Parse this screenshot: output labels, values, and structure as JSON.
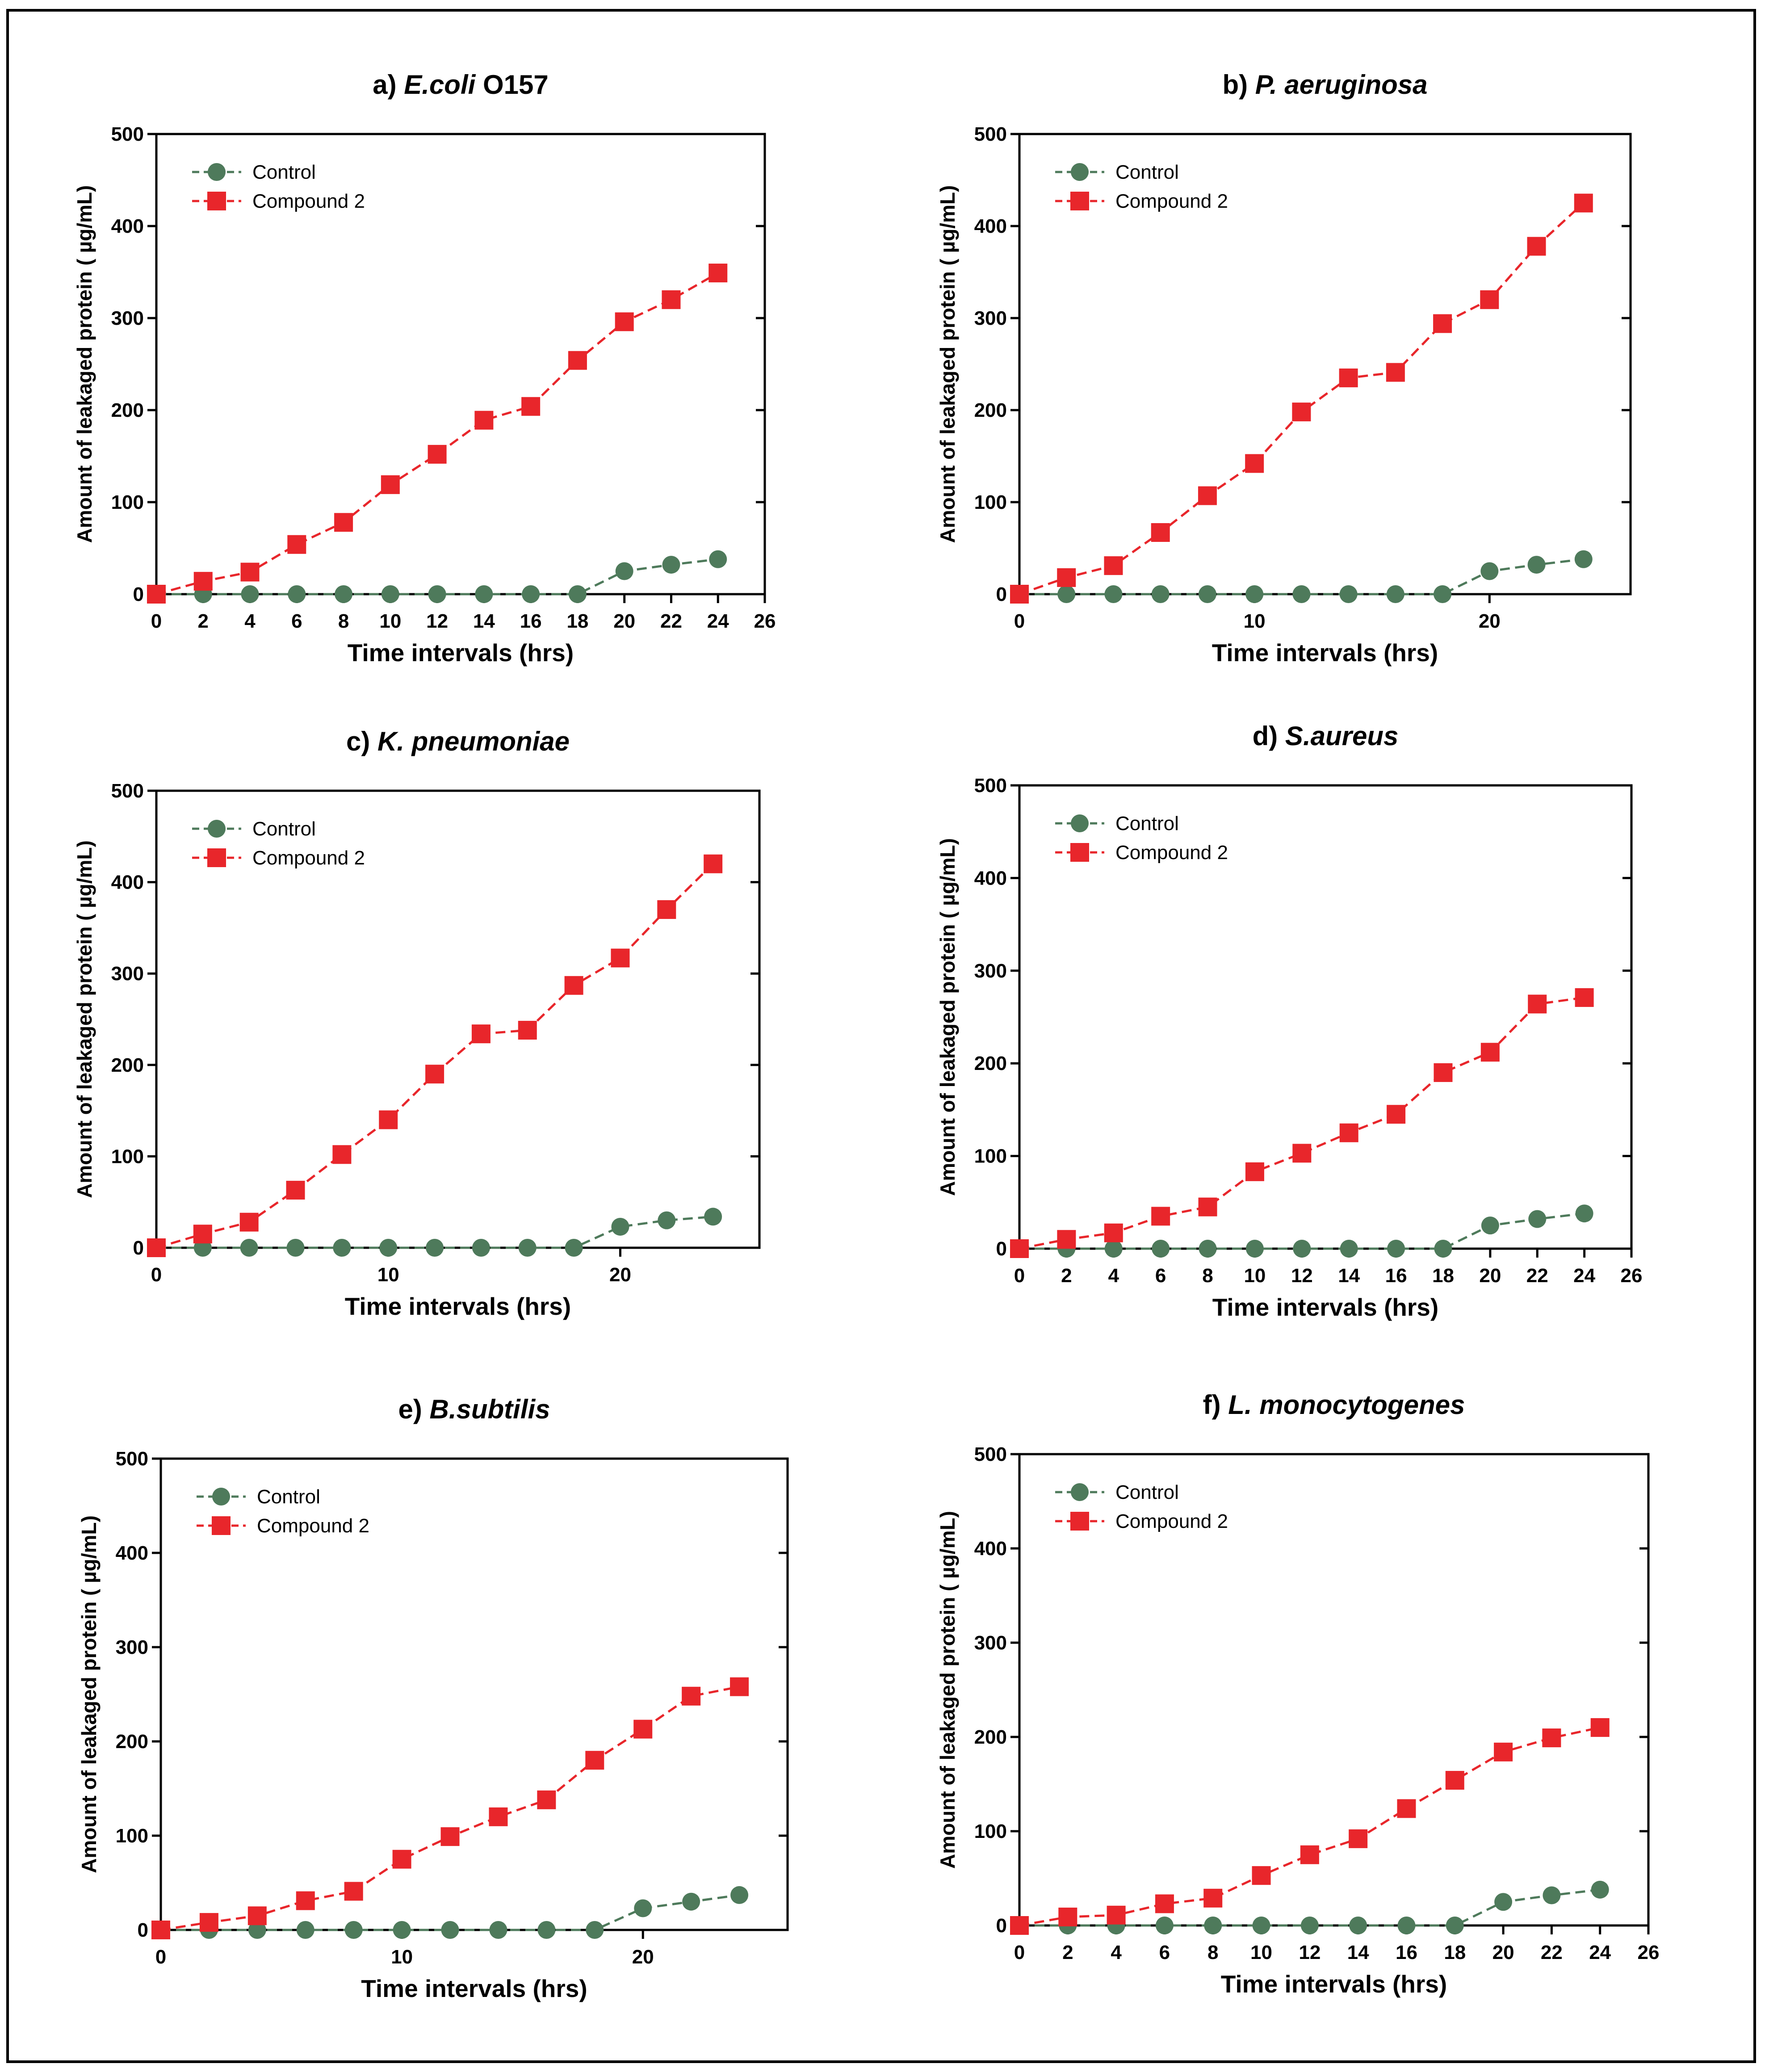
{
  "figure": {
    "colors": {
      "control": "#4e7a5b",
      "compound": "#e8262b",
      "axis": "#000000"
    }
  },
  "chart_data": [
    {
      "type": "line",
      "title_prefix": "a)",
      "title_name": "E.coli",
      "title_suffix": " O157",
      "xlabel": "Time intervals (hrs)",
      "ylabel": "Amount of leakaged protein (  µg/mL)",
      "xlim": [
        0,
        26
      ],
      "ylim": [
        0,
        500
      ],
      "xticks": [
        0,
        2,
        4,
        6,
        8,
        10,
        12,
        14,
        16,
        18,
        20,
        22,
        24,
        26
      ],
      "yticks": [
        0,
        100,
        200,
        300,
        400,
        500
      ],
      "legend_position": "top-left",
      "series": [
        {
          "name": "Control",
          "marker": "circle",
          "x": [
            0,
            2,
            4,
            6,
            8,
            10,
            12,
            14,
            16,
            18,
            20,
            22,
            24
          ],
          "y": [
            0,
            0,
            0,
            0,
            0,
            0,
            0,
            0,
            0,
            0,
            25,
            32,
            38
          ]
        },
        {
          "name": "Compound 2",
          "marker": "square",
          "x": [
            0,
            2,
            4,
            6,
            8,
            10,
            12,
            14,
            16,
            18,
            20,
            22,
            24
          ],
          "y": [
            0,
            14,
            24,
            54,
            78,
            119,
            152,
            189,
            204,
            254,
            296,
            320,
            349
          ]
        }
      ]
    },
    {
      "type": "line",
      "title_prefix": "b)",
      "title_name": "P. aeruginosa",
      "title_suffix": "",
      "xlabel": "Time intervals (hrs)",
      "ylabel": "Amount of leakaged protein (  µg/mL)",
      "xlim": [
        0,
        26
      ],
      "ylim": [
        0,
        500
      ],
      "xticks": [
        0,
        10,
        20
      ],
      "yticks": [
        0,
        100,
        200,
        300,
        400,
        500
      ],
      "legend_position": "top-left",
      "series": [
        {
          "name": "Control",
          "marker": "circle",
          "x": [
            0,
            2,
            4,
            6,
            8,
            10,
            12,
            14,
            16,
            18,
            20,
            22,
            24
          ],
          "y": [
            0,
            0,
            0,
            0,
            0,
            0,
            0,
            0,
            0,
            0,
            25,
            32,
            38
          ]
        },
        {
          "name": "Compound 2",
          "marker": "square",
          "x": [
            0,
            2,
            4,
            6,
            8,
            10,
            12,
            14,
            16,
            18,
            20,
            22,
            24
          ],
          "y": [
            0,
            18,
            31,
            67,
            107,
            142,
            198,
            235,
            241,
            294,
            320,
            378,
            425
          ]
        }
      ]
    },
    {
      "type": "line",
      "title_prefix": "c)",
      "title_name": "K. pneumoniae",
      "title_suffix": "",
      "xlabel": "Time intervals (hrs)",
      "ylabel": "Amount of leakaged protein (  µg/mL)",
      "xlim": [
        0,
        26
      ],
      "ylim": [
        0,
        500
      ],
      "xticks": [
        0,
        10,
        20
      ],
      "yticks": [
        0,
        100,
        200,
        300,
        400,
        500
      ],
      "legend_position": "top-left",
      "series": [
        {
          "name": "Control",
          "marker": "circle",
          "x": [
            0,
            2,
            4,
            6,
            8,
            10,
            12,
            14,
            16,
            18,
            20,
            22,
            24
          ],
          "y": [
            0,
            0,
            0,
            0,
            0,
            0,
            0,
            0,
            0,
            0,
            23,
            30,
            34
          ]
        },
        {
          "name": "Compound 2",
          "marker": "square",
          "x": [
            0,
            2,
            4,
            6,
            8,
            10,
            12,
            14,
            16,
            18,
            20,
            22,
            24
          ],
          "y": [
            0,
            15,
            28,
            63,
            102,
            140,
            190,
            234,
            238,
            287,
            317,
            370,
            420
          ]
        }
      ]
    },
    {
      "type": "line",
      "title_prefix": "d)",
      "title_name": "S.aureus",
      "title_suffix": "",
      "xlabel": "Time intervals (hrs)",
      "ylabel": "Amount of leakaged protein (  µg/mL)",
      "xlim": [
        0,
        26
      ],
      "ylim": [
        0,
        500
      ],
      "xticks": [
        0,
        2,
        4,
        6,
        8,
        10,
        12,
        14,
        16,
        18,
        20,
        22,
        24,
        26
      ],
      "yticks": [
        0,
        100,
        200,
        300,
        400,
        500
      ],
      "legend_position": "top-left",
      "series": [
        {
          "name": "Control",
          "marker": "circle",
          "x": [
            0,
            2,
            4,
            6,
            8,
            10,
            12,
            14,
            16,
            18,
            20,
            22,
            24
          ],
          "y": [
            0,
            0,
            0,
            0,
            0,
            0,
            0,
            0,
            0,
            0,
            25,
            32,
            38
          ]
        },
        {
          "name": "Compound 2",
          "marker": "square",
          "x": [
            0,
            2,
            4,
            6,
            8,
            10,
            12,
            14,
            16,
            18,
            20,
            22,
            24
          ],
          "y": [
            0,
            10,
            17,
            35,
            45,
            83,
            103,
            125,
            145,
            190,
            212,
            264,
            271
          ]
        }
      ]
    },
    {
      "type": "line",
      "title_prefix": "e)",
      "title_name": "B.subtilis",
      "title_suffix": "",
      "xlabel": "Time intervals (hrs)",
      "ylabel": "Amount of leakaged protein (  µg/mL)",
      "xlim": [
        0,
        26
      ],
      "ylim": [
        0,
        500
      ],
      "xticks": [
        0,
        10,
        20
      ],
      "yticks": [
        0,
        100,
        200,
        300,
        400,
        500
      ],
      "legend_position": "top-left",
      "series": [
        {
          "name": "Control",
          "marker": "circle",
          "x": [
            0,
            2,
            4,
            6,
            8,
            10,
            12,
            14,
            16,
            18,
            20,
            22,
            24
          ],
          "y": [
            0,
            0,
            0,
            0,
            0,
            0,
            0,
            0,
            0,
            0,
            23,
            30,
            37
          ]
        },
        {
          "name": "Compound 2",
          "marker": "square",
          "x": [
            0,
            2,
            4,
            6,
            8,
            10,
            12,
            14,
            16,
            18,
            20,
            22,
            24
          ],
          "y": [
            0,
            8,
            15,
            31,
            41,
            75,
            99,
            120,
            138,
            180,
            213,
            248,
            258
          ]
        }
      ]
    },
    {
      "type": "line",
      "title_prefix": "f)",
      "title_name": "L. monocytogenes",
      "title_suffix": "",
      "xlabel": "Time intervals (hrs)",
      "ylabel": "Amount of leakaged protein (  µg/mL)",
      "xlim": [
        0,
        26
      ],
      "ylim": [
        0,
        500
      ],
      "xticks": [
        0,
        2,
        4,
        6,
        8,
        10,
        12,
        14,
        16,
        18,
        20,
        22,
        24,
        26
      ],
      "yticks": [
        0,
        100,
        200,
        300,
        400,
        500
      ],
      "legend_position": "top-left",
      "series": [
        {
          "name": "Control",
          "marker": "circle",
          "x": [
            0,
            2,
            4,
            6,
            8,
            10,
            12,
            14,
            16,
            18,
            20,
            22,
            24
          ],
          "y": [
            0,
            0,
            0,
            0,
            0,
            0,
            0,
            0,
            0,
            0,
            25,
            32,
            38
          ]
        },
        {
          "name": "Compound 2",
          "marker": "square",
          "x": [
            0,
            2,
            4,
            6,
            8,
            10,
            12,
            14,
            16,
            18,
            20,
            22,
            24
          ],
          "y": [
            0,
            9,
            11,
            23,
            29,
            53,
            75,
            92,
            124,
            154,
            184,
            199,
            210
          ]
        }
      ]
    }
  ]
}
